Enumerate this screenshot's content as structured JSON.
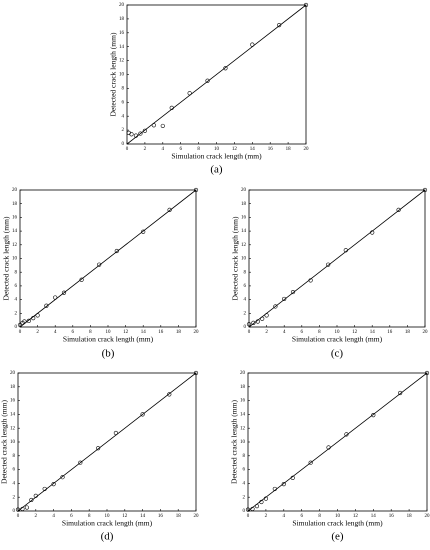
{
  "chart_data": [
    {
      "type": "scatter",
      "caption": "(a)",
      "xlabel": "Simulation crack length (mm)",
      "ylabel": "Detected crack length (mm)",
      "xlim": [
        0,
        20
      ],
      "ylim": [
        0,
        20
      ],
      "xticks": [
        0,
        2,
        4,
        6,
        8,
        10,
        12,
        14,
        16,
        18,
        20
      ],
      "yticks": [
        0,
        2,
        4,
        6,
        8,
        10,
        12,
        14,
        16,
        18,
        20
      ],
      "series": [
        {
          "style": "marker",
          "color": "#000000",
          "x": [
            0.2,
            0.5,
            1,
            1.5,
            2,
            3,
            4,
            5,
            7,
            9,
            11,
            14,
            17,
            20
          ],
          "values": [
            1.6,
            1.4,
            1.2,
            1.5,
            1.9,
            2.7,
            2.6,
            5.2,
            7.3,
            9.1,
            10.9,
            14.3,
            17.1,
            20
          ]
        },
        {
          "style": "line",
          "color": "#000000",
          "x": [
            0,
            20
          ],
          "values": [
            0,
            20
          ]
        }
      ]
    },
    {
      "type": "scatter",
      "caption": "(b)",
      "xlabel": "Simulation crack length (mm)",
      "ylabel": "Detected crack length (mm)",
      "xlim": [
        0,
        20
      ],
      "ylim": [
        0,
        20
      ],
      "xticks": [
        0,
        2,
        4,
        6,
        8,
        10,
        12,
        14,
        16,
        18,
        20
      ],
      "yticks": [
        0,
        2,
        4,
        6,
        8,
        10,
        12,
        14,
        16,
        18,
        20
      ],
      "series": [
        {
          "style": "marker",
          "color": "#000000",
          "x": [
            0,
            0.3,
            0.5,
            1,
            1.5,
            2,
            3,
            4,
            5,
            7,
            9,
            11,
            14,
            17,
            20
          ],
          "values": [
            0.3,
            0.6,
            0.8,
            0.9,
            1.3,
            1.7,
            3.1,
            4.3,
            5,
            6.9,
            9.1,
            11.1,
            13.9,
            17.1,
            20
          ]
        },
        {
          "style": "line",
          "color": "#000000",
          "x": [
            0,
            20
          ],
          "values": [
            0,
            20
          ]
        }
      ]
    },
    {
      "type": "scatter",
      "caption": "(c)",
      "xlabel": "Simulation crack length (mm)",
      "ylabel": "Detected crack length (mm)",
      "xlim": [
        0,
        20
      ],
      "ylim": [
        0,
        20
      ],
      "xticks": [
        0,
        2,
        4,
        6,
        8,
        10,
        12,
        14,
        16,
        18,
        20
      ],
      "yticks": [
        0,
        2,
        4,
        6,
        8,
        10,
        12,
        14,
        16,
        18,
        20
      ],
      "series": [
        {
          "style": "marker",
          "color": "#000000",
          "x": [
            0,
            0.5,
            1,
            1.5,
            2,
            3,
            4,
            5,
            7,
            9,
            11,
            14,
            17,
            20
          ],
          "values": [
            0.4,
            0.6,
            0.8,
            1.2,
            1.7,
            3,
            4.1,
            5.1,
            6.8,
            9.1,
            11.2,
            13.8,
            17.1,
            20
          ]
        },
        {
          "style": "line",
          "color": "#000000",
          "x": [
            0,
            20
          ],
          "values": [
            0,
            20
          ]
        }
      ]
    },
    {
      "type": "scatter",
      "caption": "(d)",
      "xlabel": "Simulation crack length (mm)",
      "ylabel": "Detected crack length (mm)",
      "xlim": [
        0,
        20
      ],
      "ylim": [
        0,
        20
      ],
      "xticks": [
        0,
        2,
        4,
        6,
        8,
        10,
        12,
        14,
        16,
        18,
        20
      ],
      "yticks": [
        0,
        2,
        4,
        6,
        8,
        10,
        12,
        14,
        16,
        18,
        20
      ],
      "series": [
        {
          "style": "marker",
          "color": "#000000",
          "x": [
            0,
            0.5,
            1,
            1.5,
            2,
            3,
            4,
            5,
            7,
            9,
            11,
            14,
            17,
            20
          ],
          "values": [
            0.2,
            0.3,
            0.5,
            1.6,
            2.2,
            3.2,
            3.9,
            4.9,
            7,
            9.1,
            11.3,
            14,
            16.9,
            20
          ]
        },
        {
          "style": "line",
          "color": "#000000",
          "x": [
            0,
            20
          ],
          "values": [
            0,
            20
          ]
        }
      ]
    },
    {
      "type": "scatter",
      "caption": "(e)",
      "xlabel": "Simulation crack length (mm)",
      "ylabel": "Detected crack length (mm)",
      "xlim": [
        0,
        20
      ],
      "ylim": [
        0,
        20
      ],
      "xticks": [
        0,
        2,
        4,
        6,
        8,
        10,
        12,
        14,
        16,
        18,
        20
      ],
      "yticks": [
        0,
        2,
        4,
        6,
        8,
        10,
        12,
        14,
        16,
        18,
        20
      ],
      "series": [
        {
          "style": "marker",
          "color": "#000000",
          "x": [
            0,
            0.5,
            1,
            1.5,
            2,
            3,
            4,
            5,
            7,
            9,
            11,
            14,
            17,
            20
          ],
          "values": [
            0.2,
            0.3,
            0.7,
            1.3,
            1.8,
            3.2,
            3.9,
            4.8,
            7,
            9.2,
            11.1,
            13.9,
            17.1,
            20
          ]
        },
        {
          "style": "line",
          "color": "#000000",
          "x": [
            0,
            20
          ],
          "values": [
            0,
            20
          ]
        }
      ]
    }
  ]
}
